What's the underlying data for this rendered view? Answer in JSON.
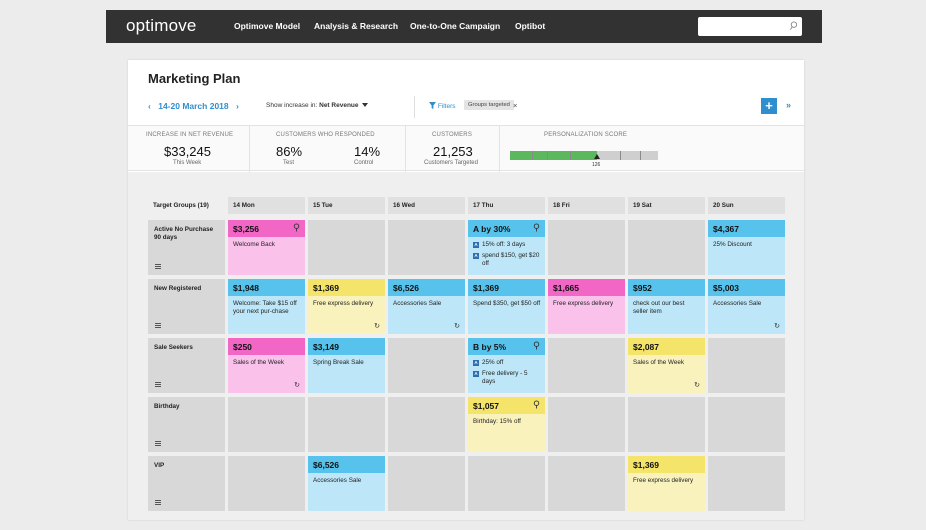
{
  "nav": {
    "logo": "optimove",
    "items": [
      "Optimove Model",
      "Analysis & Research",
      "One-to-One Campaign",
      "Optibot"
    ],
    "search_placeholder": ""
  },
  "page": {
    "title": "Marketing Plan",
    "date_range": "14-20 March 2018",
    "show_increase_label": "Show increase in:",
    "show_increase_value": "Net Revenue",
    "filters_label": "Filters",
    "filter_chip": "Groups targeted",
    "chip_close": "×",
    "add_label": "+",
    "collapse_label": "»",
    "prev_label": "‹",
    "next_label": "›"
  },
  "metrics": {
    "net_revenue": {
      "label": "INCREASE IN NET REVENUE",
      "value": "$33,245",
      "sub": "This Week"
    },
    "responded": {
      "label": "CUSTOMERS WHO RESPONDED",
      "test_value": "86%",
      "test_sub": "Test",
      "control_value": "14%",
      "control_sub": "Control"
    },
    "customers": {
      "label": "CUSTOMERS",
      "value": "21,253",
      "sub": "Customers Targeted"
    },
    "personalization": {
      "label": "PERSONALIZATION SCORE",
      "value": "126",
      "fraction": 0.59
    }
  },
  "grid": {
    "corner": "Target Groups (19)",
    "days": [
      "14 Mon",
      "15 Tue",
      "16 Wed",
      "17 Thu",
      "18 Fri",
      "19 Sat",
      "20 Sun"
    ],
    "rows": [
      {
        "name": "Active No Purchase 90 days"
      },
      {
        "name": "New Registered"
      },
      {
        "name": "Sale Seekers"
      },
      {
        "name": "Birthday"
      },
      {
        "name": "VIP"
      }
    ]
  },
  "cards": {
    "r0d0": {
      "amount": "$3,256",
      "text": "Welcome Back"
    },
    "r0d3": {
      "amount": "A by 30%",
      "line1": "15% off: 3 days",
      "line2": "spend $150, get $20 off",
      "badge": "A"
    },
    "r0d6": {
      "amount": "$4,367",
      "text": "25% Discount"
    },
    "r1d0": {
      "amount": "$1,948",
      "text": "Welcome: Take $15 off your next pur-chase"
    },
    "r1d1": {
      "amount": "$1,369",
      "text": "Free express delivery"
    },
    "r1d2": {
      "amount": "$6,526",
      "text": "Accessories Sale"
    },
    "r1d3": {
      "amount": "$1,369",
      "text": "Spend $350, get $50 off"
    },
    "r1d4": {
      "amount": "$1,665",
      "text": "Free express delivery"
    },
    "r1d5": {
      "amount": "$952",
      "text": "check out our best seller item"
    },
    "r1d6": {
      "amount": "$5,003",
      "text": "Accessories Sale"
    },
    "r2d0": {
      "amount": "$250",
      "text": "Sales of the Week"
    },
    "r2d1": {
      "amount": "$3,149",
      "text": "Spring Break Sale"
    },
    "r2d3": {
      "amount": "B by 5%",
      "line1": "25% off",
      "line2": "Free delivery - 5 days",
      "badge": "A"
    },
    "r2d5": {
      "amount": "$2,087",
      "text": "Sales of the Week"
    },
    "r3d3": {
      "amount": "$1,057",
      "text": "Birthday: 15% off"
    },
    "r4d1": {
      "amount": "$6,526",
      "text": "Accessories Sale"
    },
    "r4d5": {
      "amount": "$1,369",
      "text": "Free express delivery"
    }
  },
  "colors": {
    "accent": "#2f8fce",
    "pink": "#f266c6",
    "blue": "#57c3ec",
    "yellow": "#f4e46a",
    "score_green": "#5cb85c"
  }
}
